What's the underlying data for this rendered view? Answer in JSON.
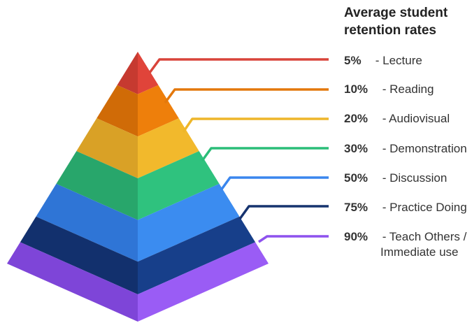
{
  "title": "Average student retention rates",
  "levels": [
    {
      "percent": "5%",
      "label": "- Lecture",
      "color": "#e0443a",
      "color_dark": "#c63a30",
      "line_color": "#d9443a"
    },
    {
      "percent": "10%",
      "label": "- Reading",
      "color": "#ee7f0b",
      "color_dark": "#d06b07",
      "line_color": "#e3780c"
    },
    {
      "percent": "20%",
      "label": "- Audiovisual",
      "color": "#f2b92c",
      "color_dark": "#d9a126",
      "line_color": "#eeb62a"
    },
    {
      "percent": "30%",
      "label": "- Demonstration",
      "color": "#2fc27e",
      "color_dark": "#28a66b",
      "line_color": "#2bbd78"
    },
    {
      "percent": "50%",
      "label": "- Discussion",
      "color": "#3b8cf0",
      "color_dark": "#2f75d6",
      "line_color": "#3a86ee"
    },
    {
      "percent": "75%",
      "label": "- Practice Doing",
      "color": "#173f8a",
      "color_dark": "#12306d",
      "line_color": "#16336f"
    },
    {
      "percent": "90%",
      "label": "- Teach Others /",
      "label_line2": "Immediate use",
      "color": "#9a5cf5",
      "color_dark": "#7e45d8",
      "line_color": "#8e52ee"
    }
  ]
}
